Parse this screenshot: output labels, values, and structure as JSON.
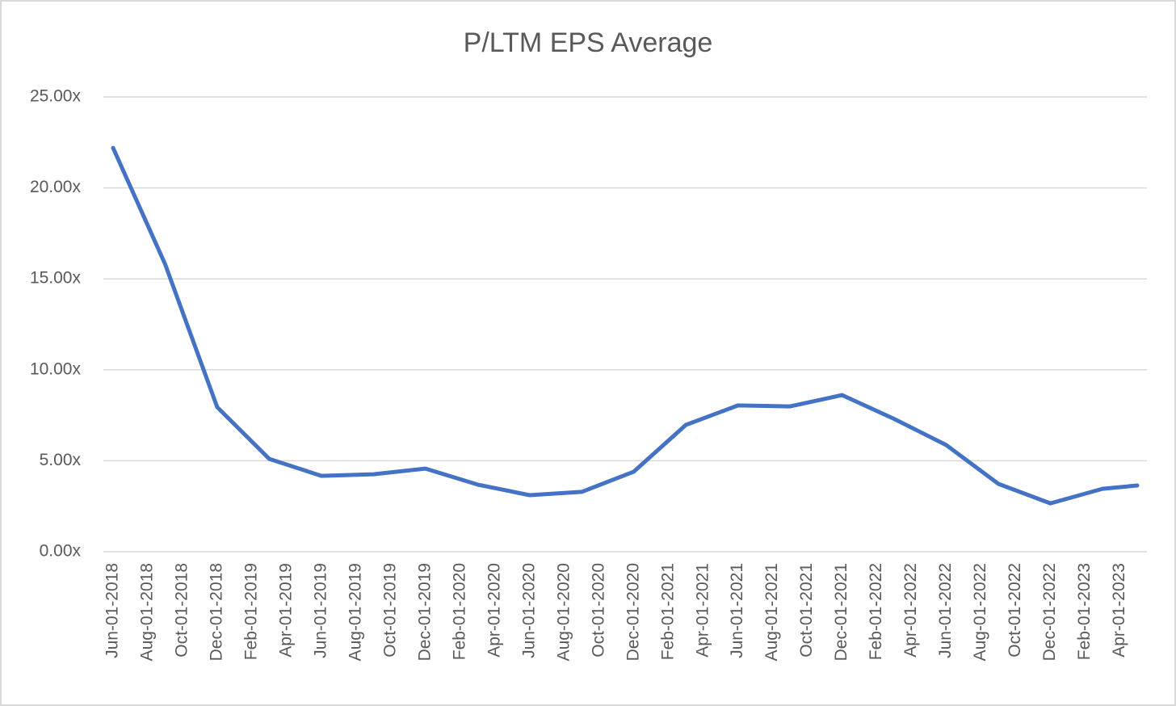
{
  "chart_data": {
    "type": "line",
    "title": "P/LTM EPS Average",
    "x": [
      "Jun-01-2018",
      "Sep-01-2018",
      "Dec-01-2018",
      "Mar-01-2019",
      "Jun-01-2019",
      "Sep-01-2019",
      "Dec-01-2019",
      "Mar-01-2020",
      "Jun-01-2020",
      "Sep-01-2020",
      "Dec-01-2020",
      "Mar-01-2021",
      "Jun-01-2021",
      "Sep-01-2021",
      "Dec-01-2021",
      "Mar-01-2022",
      "Jun-01-2022",
      "Sep-01-2022",
      "Dec-01-2022",
      "Mar-01-2023",
      "May-01-2023"
    ],
    "series": [
      {
        "name": "P/LTM EPS Average",
        "color": "#4472c4",
        "values": [
          22.2,
          15.8,
          7.95,
          5.1,
          4.17,
          4.26,
          4.57,
          3.69,
          3.11,
          3.29,
          4.4,
          6.97,
          8.04,
          7.99,
          8.61,
          7.3,
          5.86,
          3.73,
          2.66,
          3.46,
          3.64
        ]
      }
    ],
    "xlim": [
      "Jun-01-2018",
      "May-01-2023"
    ],
    "xticks": [
      "Jun-01-2018",
      "Aug-01-2018",
      "Oct-01-2018",
      "Dec-01-2018",
      "Feb-01-2019",
      "Apr-01-2019",
      "Jun-01-2019",
      "Aug-01-2019",
      "Oct-01-2019",
      "Dec-01-2019",
      "Feb-01-2020",
      "Apr-01-2020",
      "Jun-01-2020",
      "Aug-01-2020",
      "Oct-01-2020",
      "Dec-01-2020",
      "Feb-01-2021",
      "Apr-01-2021",
      "Jun-01-2021",
      "Aug-01-2021",
      "Oct-01-2021",
      "Dec-01-2021",
      "Feb-01-2022",
      "Apr-01-2022",
      "Jun-01-2022",
      "Aug-01-2022",
      "Oct-01-2022",
      "Dec-01-2022",
      "Feb-01-2023",
      "Apr-01-2023"
    ],
    "ylim": [
      0,
      25
    ],
    "yticks": [
      {
        "value": 0,
        "label": "0.00x"
      },
      {
        "value": 5,
        "label": "5.00x"
      },
      {
        "value": 10,
        "label": "10.00x"
      },
      {
        "value": 15,
        "label": "15.00x"
      },
      {
        "value": 20,
        "label": "20.00x"
      },
      {
        "value": 25,
        "label": "25.00x"
      }
    ],
    "grid": true
  }
}
